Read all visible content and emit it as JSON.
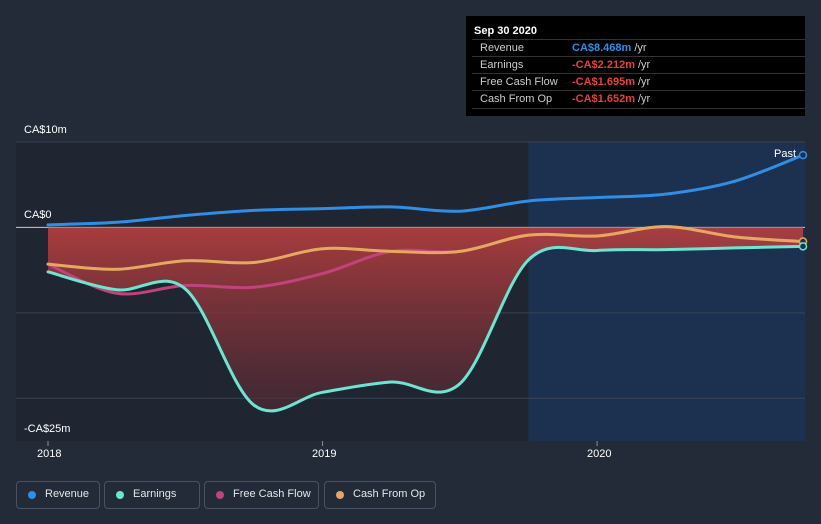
{
  "tooltip": {
    "date": "Sep 30 2020",
    "rows": [
      {
        "label": "Revenue",
        "value": "CA$8.468m",
        "unit": "/yr",
        "color": "#2f8ee5"
      },
      {
        "label": "Earnings",
        "value": "-CA$2.212m",
        "unit": "/yr",
        "color": "#e5413f"
      },
      {
        "label": "Free Cash Flow",
        "value": "-CA$1.695m",
        "unit": "/yr",
        "color": "#e5413f"
      },
      {
        "label": "Cash From Op",
        "value": "-CA$1.652m",
        "unit": "/yr",
        "color": "#e5413f"
      }
    ]
  },
  "past_label": "Past",
  "legend": [
    {
      "label": "Revenue",
      "color": "#2f8ee5"
    },
    {
      "label": "Earnings",
      "color": "#6ce5d2"
    },
    {
      "label": "Free Cash Flow",
      "color": "#c2427b"
    },
    {
      "label": "Cash From Op",
      "color": "#e5a860"
    }
  ],
  "chart_data": {
    "type": "line",
    "y_tick_labels": [
      "CA$10m",
      "CA$0",
      "-CA$25m"
    ],
    "x_tick_labels": [
      "2018",
      "2019",
      "2020"
    ],
    "ylim": [
      -25,
      10
    ],
    "xlim": [
      2018.0,
      2020.75
    ],
    "x_ticks": [
      2018,
      2019,
      2020
    ],
    "forecast_start": 2019.75,
    "series": [
      {
        "name": "Revenue",
        "color": "#2f8ee5",
        "x": [
          2018.0,
          2018.25,
          2018.5,
          2018.75,
          2019.0,
          2019.25,
          2019.5,
          2019.75,
          2020.0,
          2020.25,
          2020.5,
          2020.75
        ],
        "y": [
          0.3,
          0.6,
          1.4,
          2.0,
          2.2,
          2.4,
          1.9,
          3.1,
          3.5,
          3.9,
          5.4,
          8.468
        ]
      },
      {
        "name": "Earnings",
        "color": "#6ce5d2",
        "x": [
          2018.0,
          2018.25,
          2018.5,
          2018.75,
          2019.0,
          2019.25,
          2019.5,
          2019.75,
          2020.0,
          2020.25,
          2020.5,
          2020.75
        ],
        "y": [
          -5.2,
          -7.3,
          -7.2,
          -20.8,
          -19.3,
          -18.1,
          -18.3,
          -3.8,
          -2.7,
          -2.6,
          -2.4,
          -2.212
        ]
      },
      {
        "name": "Free Cash Flow",
        "color": "#c2427b",
        "x": [
          2018.0,
          2018.25,
          2018.5,
          2018.75,
          2019.0,
          2019.25,
          2019.5,
          2019.75,
          2020.0,
          2020.25,
          2020.5,
          2020.75
        ],
        "y": [
          -4.3,
          -7.7,
          -6.8,
          -7.0,
          -5.4,
          -2.8,
          -2.8,
          -0.9,
          -1.0,
          0.1,
          -1.1,
          -1.695
        ]
      },
      {
        "name": "Cash From Op",
        "color": "#e5a860",
        "x": [
          2018.0,
          2018.25,
          2018.5,
          2018.75,
          2019.0,
          2019.25,
          2019.5,
          2019.75,
          2020.0,
          2020.25,
          2020.5,
          2020.75
        ],
        "y": [
          -4.3,
          -4.9,
          -3.9,
          -4.1,
          -2.5,
          -2.8,
          -2.8,
          -0.9,
          -1.0,
          0.1,
          -1.1,
          -1.652
        ]
      }
    ]
  }
}
